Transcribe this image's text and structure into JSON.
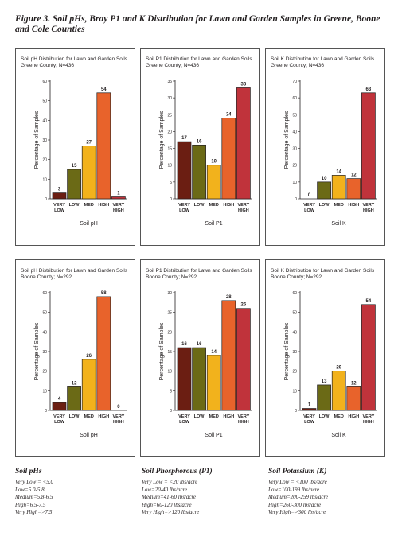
{
  "figure_title": "Figure 3. Soil pHs, Bray P1 and K Distribution for Lawn and Garden Samples in Greene, Boone and Cole Counties",
  "colors": {
    "VERY LOW": "#6b1e12",
    "LOW": "#6b6a16",
    "MED": "#f2b21c",
    "HIGH": "#e8632b",
    "VERY HIGH": "#c0333b"
  },
  "chart_data": [
    {
      "type": "bar",
      "title": "Soil pH Distribution for Lawn and Garden Soils",
      "subtitle": "Greene County; N=436",
      "xlabel": "Soil pH",
      "ylabel": "Percentage of Samples",
      "ylim": [
        0,
        60
      ],
      "yticks": [
        0,
        10,
        20,
        30,
        40,
        50,
        60
      ],
      "categories": [
        "VERY LOW",
        "LOW",
        "MED",
        "HIGH",
        "VERY HIGH"
      ],
      "values": [
        3,
        15,
        27,
        54,
        1
      ]
    },
    {
      "type": "bar",
      "title": "Soil P1 Distribution for Lawn and Garden Soils",
      "subtitle": "Greene County; N=436",
      "xlabel": "Soil P1",
      "ylabel": "Percentage of Samples",
      "ylim": [
        0,
        35
      ],
      "yticks": [
        0,
        5,
        10,
        15,
        20,
        25,
        30,
        35
      ],
      "categories": [
        "VERY LOW",
        "LOW",
        "MED",
        "HIGH",
        "VERY HIGH"
      ],
      "values": [
        17,
        16,
        10,
        24,
        33
      ]
    },
    {
      "type": "bar",
      "title": "Soil K Distribution for Lawn and Garden Soils",
      "subtitle": "Greene County; N=436",
      "xlabel": "Soil K",
      "ylabel": "Percentage of Samples",
      "ylim": [
        0,
        70
      ],
      "yticks": [
        0,
        10,
        20,
        30,
        40,
        50,
        60,
        70
      ],
      "categories": [
        "VERY LOW",
        "LOW",
        "MED",
        "HIGH",
        "VERY HIGH"
      ],
      "values": [
        0,
        10,
        14,
        12,
        63
      ]
    },
    {
      "type": "bar",
      "title": "Soil pH Distribution for Lawn and Garden Soils",
      "subtitle": "Boone County; N=292",
      "xlabel": "Soil pH",
      "ylabel": "Percentage of Samples",
      "ylim": [
        0,
        60
      ],
      "yticks": [
        0,
        10,
        20,
        30,
        40,
        50,
        60
      ],
      "categories": [
        "VERY LOW",
        "LOW",
        "MED",
        "HIGH",
        "VERY HIGH"
      ],
      "values": [
        4,
        12,
        26,
        58,
        0
      ]
    },
    {
      "type": "bar",
      "title": "Soil P1 Distribution for Lawn and Garden Soils",
      "subtitle": "Boone County; N=292",
      "xlabel": "Soil P1",
      "ylabel": "Percentage of Samples",
      "ylim": [
        0,
        30
      ],
      "yticks": [
        0,
        5,
        10,
        15,
        20,
        25,
        30
      ],
      "categories": [
        "VERY LOW",
        "LOW",
        "MED",
        "HIGH",
        "VERY HIGH"
      ],
      "values": [
        16,
        16,
        14,
        28,
        26
      ]
    },
    {
      "type": "bar",
      "title": "Soil K Distribution for Lawn and Garden Soils",
      "subtitle": "Boone County; N=292",
      "xlabel": "Soil K",
      "ylabel": "Percentage of Samples",
      "ylim": [
        0,
        60
      ],
      "yticks": [
        0,
        10,
        20,
        30,
        40,
        50,
        60
      ],
      "categories": [
        "VERY LOW",
        "LOW",
        "MED",
        "HIGH",
        "VERY HIGH"
      ],
      "values": [
        1,
        13,
        20,
        12,
        54
      ]
    }
  ],
  "legends": [
    {
      "heading": "Soil pHs",
      "items": [
        "Very Low = <5.0",
        "Low=5.0-5.8",
        "Medium=5.8-6.5",
        "High=6.5-7.5",
        "Very High=>7.5"
      ]
    },
    {
      "heading": "Soil Phosphorous (P1)",
      "items": [
        "Very Low = <20 lbs/acre",
        "Low=20-40 lbs/acre",
        "Medium=41-60 lbs/acre",
        "High=60-120 lbs/acre",
        "Very High=>120 lbs/acre"
      ]
    },
    {
      "heading": "Soil Potassium (K)",
      "items": [
        "Very Low = <100 lbs/acre",
        "Low=100-199 lbs/acre",
        "Medium=200-259 lbs/acre",
        "High=260-300 lbs/acre",
        "Very High=>300 lbs/acre"
      ]
    }
  ]
}
